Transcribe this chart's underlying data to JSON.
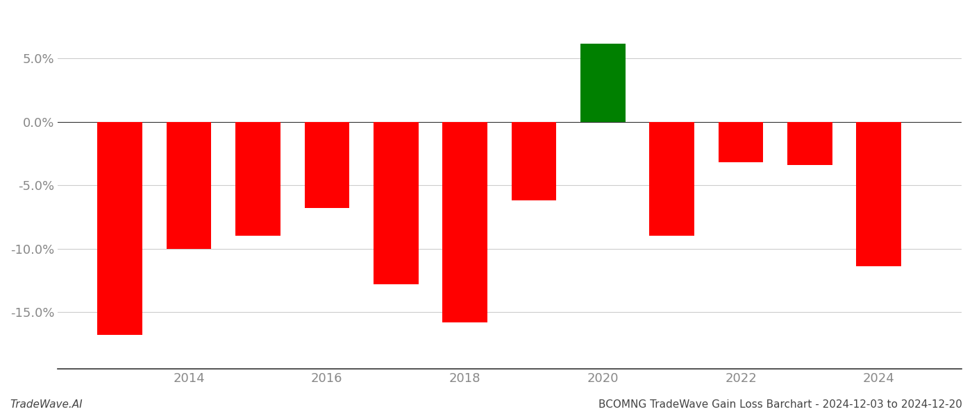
{
  "years": [
    2013,
    2014,
    2015,
    2016,
    2017,
    2018,
    2019,
    2020,
    2021,
    2022,
    2023,
    2024
  ],
  "values": [
    -0.168,
    -0.1,
    -0.09,
    -0.068,
    -0.128,
    -0.158,
    -0.062,
    0.062,
    -0.09,
    -0.032,
    -0.034,
    -0.114
  ],
  "colors": [
    "#ff0000",
    "#ff0000",
    "#ff0000",
    "#ff0000",
    "#ff0000",
    "#ff0000",
    "#ff0000",
    "#008000",
    "#ff0000",
    "#ff0000",
    "#ff0000",
    "#ff0000"
  ],
  "ylim": [
    -0.195,
    0.088
  ],
  "yticks": [
    -0.15,
    -0.1,
    -0.05,
    0.0,
    0.05
  ],
  "xticks": [
    2014,
    2016,
    2018,
    2020,
    2022,
    2024
  ],
  "xlim": [
    2012.1,
    2025.2
  ],
  "bar_width": 0.65,
  "background_color": "#ffffff",
  "grid_color": "#cccccc",
  "grid_linewidth": 0.8,
  "tick_color": "#888888",
  "tick_fontsize": 13,
  "spine_color": "#333333",
  "footer_left": "TradeWave.AI",
  "footer_right": "BCOMNG TradeWave Gain Loss Barchart - 2024-12-03 to 2024-12-20",
  "footer_fontsize": 11,
  "footer_left_style": "italic"
}
